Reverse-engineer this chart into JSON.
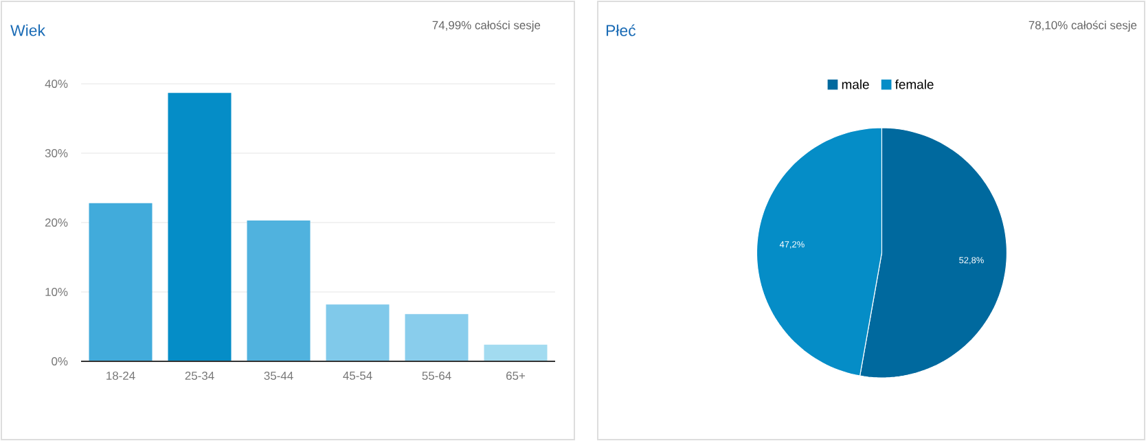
{
  "chart_data": [
    {
      "type": "bar",
      "title": "Wiek",
      "subtitle": "74,99% całości sesje",
      "categories": [
        "18-24",
        "25-34",
        "35-44",
        "45-54",
        "55-64",
        "65+"
      ],
      "values": [
        22.8,
        38.7,
        20.3,
        8.2,
        6.8,
        2.4
      ],
      "colors": [
        "#41abdb",
        "#058dc7",
        "#50b2de",
        "#80c9ea",
        "#89cdec",
        "#a2dbf0"
      ],
      "ylim": [
        0,
        40
      ],
      "yticks": [
        {
          "value": 0,
          "label": "0%"
        },
        {
          "value": 10,
          "label": "10%"
        },
        {
          "value": 20,
          "label": "20%"
        },
        {
          "value": 30,
          "label": "30%"
        },
        {
          "value": 40,
          "label": "40%"
        }
      ],
      "grid": "y"
    },
    {
      "type": "pie",
      "title": "Płeć",
      "subtitle": "78,10% całości sesje",
      "categories": [
        "male",
        "female"
      ],
      "values": [
        52.8,
        47.2
      ],
      "colors": [
        "#00699e",
        "#058dc7"
      ],
      "value_labels": [
        "52,8%",
        "47,2%"
      ],
      "legend": "top"
    }
  ]
}
